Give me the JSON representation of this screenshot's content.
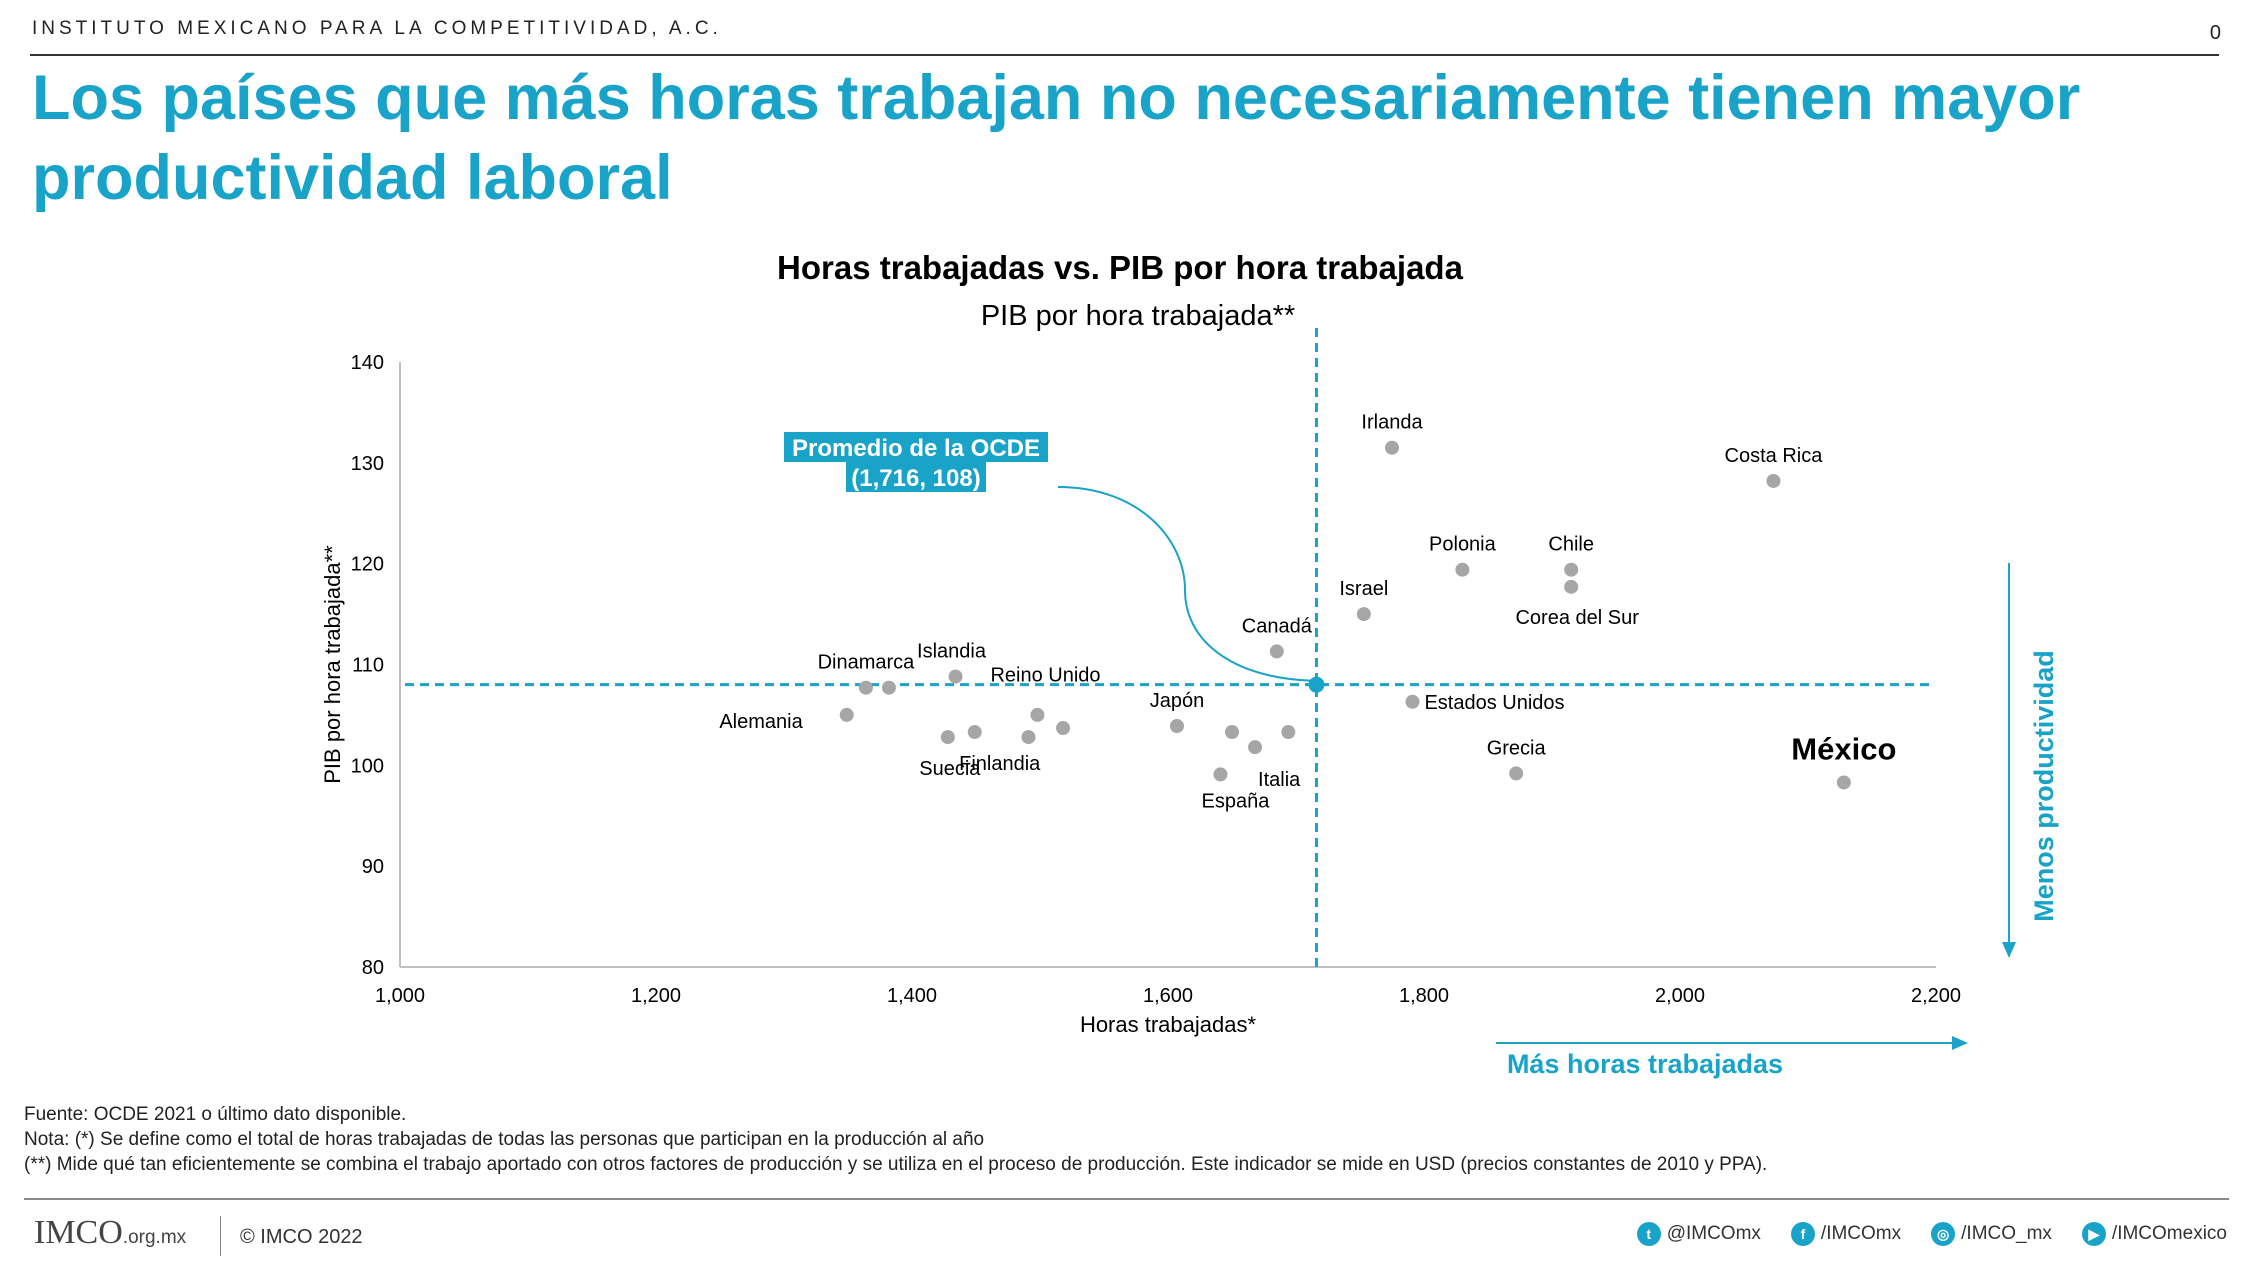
{
  "header": {
    "org": "INSTITUTO MEXICANO PARA LA COMPETITIVIDAD, A.C.",
    "page_number": "0",
    "headline": "Los países que más horas trabajan no necesariamente tienen mayor productividad laboral"
  },
  "colors": {
    "accent": "#1aa3c8",
    "point": "#a6a6a6",
    "text": "#000000"
  },
  "chart_data": {
    "type": "scatter",
    "title": "Horas trabajadas vs. PIB por hora trabajada",
    "subtitle": "PIB por hora trabajada**",
    "xlabel": "Horas trabajadas*",
    "ylabel": "PIB por hora trabajada**",
    "xlim": [
      1000,
      2200
    ],
    "ylim": [
      80,
      140
    ],
    "x_ticks": [
      1000,
      1200,
      1400,
      1600,
      1800,
      2000,
      2200
    ],
    "x_tick_labels": [
      "1,000",
      "1,200",
      "1,400",
      "1,600",
      "1,800",
      "2,000",
      "2,200"
    ],
    "y_ticks": [
      80,
      90,
      100,
      110,
      120,
      130,
      140
    ],
    "grid": false,
    "points": [
      {
        "label": "Irlanda",
        "x": 1775,
        "y": 131.5
      },
      {
        "label": "Costa Rica",
        "x": 2073,
        "y": 128.2
      },
      {
        "label": "Polonia",
        "x": 1830,
        "y": 119.4
      },
      {
        "label": "Chile",
        "x": 1915,
        "y": 119.4
      },
      {
        "label": "Corea del Sur",
        "x": 1915,
        "y": 117.7
      },
      {
        "label": "Israel",
        "x": 1753,
        "y": 115.0
      },
      {
        "label": "Canadá",
        "x": 1685,
        "y": 111.3
      },
      {
        "label": "Islandia",
        "x": 1434,
        "y": 108.8
      },
      {
        "label": "Reino Unido",
        "x": ""
      },
      {
        "label": "Dinamarca",
        "x": 1364,
        "y": 107.7
      },
      {
        "label": "",
        "x": 1382,
        "y": 107.7
      },
      {
        "label": "Estados Unidos",
        "x": 1791,
        "y": 106.3
      },
      {
        "label": "Alemania",
        "x": 1349,
        "y": 105.0
      },
      {
        "label": "",
        "x": 1498,
        "y": 105.0
      },
      {
        "label": "Japón",
        "x": 1607,
        "y": 103.9
      },
      {
        "label": "",
        "x": 1518,
        "y": 103.7
      },
      {
        "label": "Finlandia",
        "x": 1449,
        "y": 103.3
      },
      {
        "label": "",
        "x": 1650,
        "y": 103.3
      },
      {
        "label": "",
        "x": 1694,
        "y": 103.3
      },
      {
        "label": "Suecia",
        "x": 1428,
        "y": 102.8
      },
      {
        "label": "",
        "x": 1491,
        "y": 102.8
      },
      {
        "label": "Italia",
        "x": 1668,
        "y": 101.8
      },
      {
        "label": "Grecia",
        "x": 1872,
        "y": 99.2
      },
      {
        "label": "España",
        "x": 1641,
        "y": 99.1
      },
      {
        "label": "México",
        "x": 2128,
        "y": 98.3
      }
    ],
    "oecd_average": {
      "x": 1716,
      "y": 108,
      "label_line1": "Promedio de la OCDE",
      "label_line2": "(1,716, 108)"
    },
    "arrow_x_label": "Más horas trabajadas",
    "arrow_y_label": "Menos productividad"
  },
  "notes": [
    "Fuente: OCDE 2021 o último dato disponible.",
    "Nota: (*) Se define como el total de horas trabajadas de todas las personas que participan en la producción al año",
    "(**) Mide qué tan eficientemente se combina el trabajo aportado con otros factores de producción y se utiliza en el proceso de producción. Este indicador se mide en USD (precios constantes de 2010 y PPA)."
  ],
  "footer": {
    "logo": "IMCO",
    "logo_domain": ".org.mx",
    "copyright": "© IMCO 2022",
    "socials": [
      {
        "icon": "twitter-icon",
        "glyph": "t",
        "handle": "@IMCOmx"
      },
      {
        "icon": "facebook-icon",
        "glyph": "f",
        "handle": "/IMCOmx"
      },
      {
        "icon": "instagram-icon",
        "glyph": "◎",
        "handle": "/IMCO_mx"
      },
      {
        "icon": "youtube-icon",
        "glyph": "▶",
        "handle": "/IMCOmexico"
      }
    ]
  }
}
